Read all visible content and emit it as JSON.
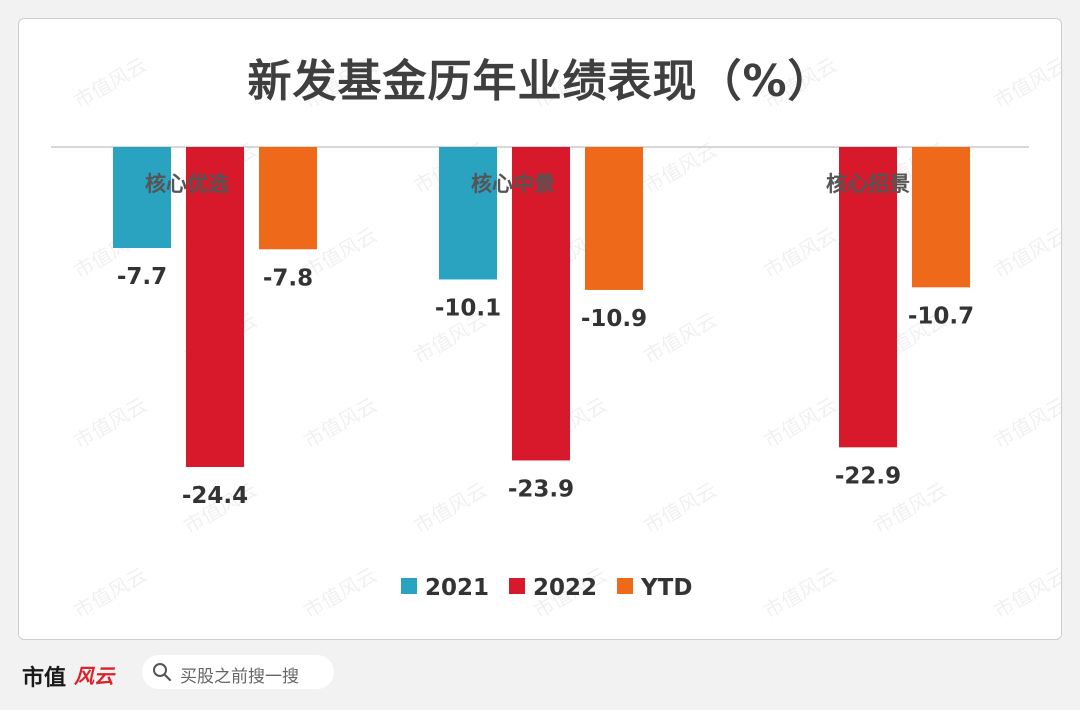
{
  "chart_data": {
    "type": "bar",
    "title": "新发基金历年业绩表现（%）",
    "categories": [
      "核心优选",
      "核心中景",
      "核心招景"
    ],
    "series": [
      {
        "name": "2021",
        "color": "#2aa3c0",
        "values": [
          -7.7,
          -10.1,
          null
        ]
      },
      {
        "name": "2022",
        "color": "#d7192b",
        "values": [
          -24.4,
          -23.9,
          -22.9
        ]
      },
      {
        "name": "YTD",
        "color": "#ee6a1a",
        "values": [
          -7.8,
          -10.9,
          -10.7
        ]
      }
    ],
    "ylim": [
      -24.4,
      0
    ],
    "legend": "bottom-center",
    "grid": false
  },
  "watermark": "市值风云",
  "footer": {
    "brand": "市值",
    "brand_script": "风云",
    "search_placeholder": "买股之前搜一搜"
  }
}
